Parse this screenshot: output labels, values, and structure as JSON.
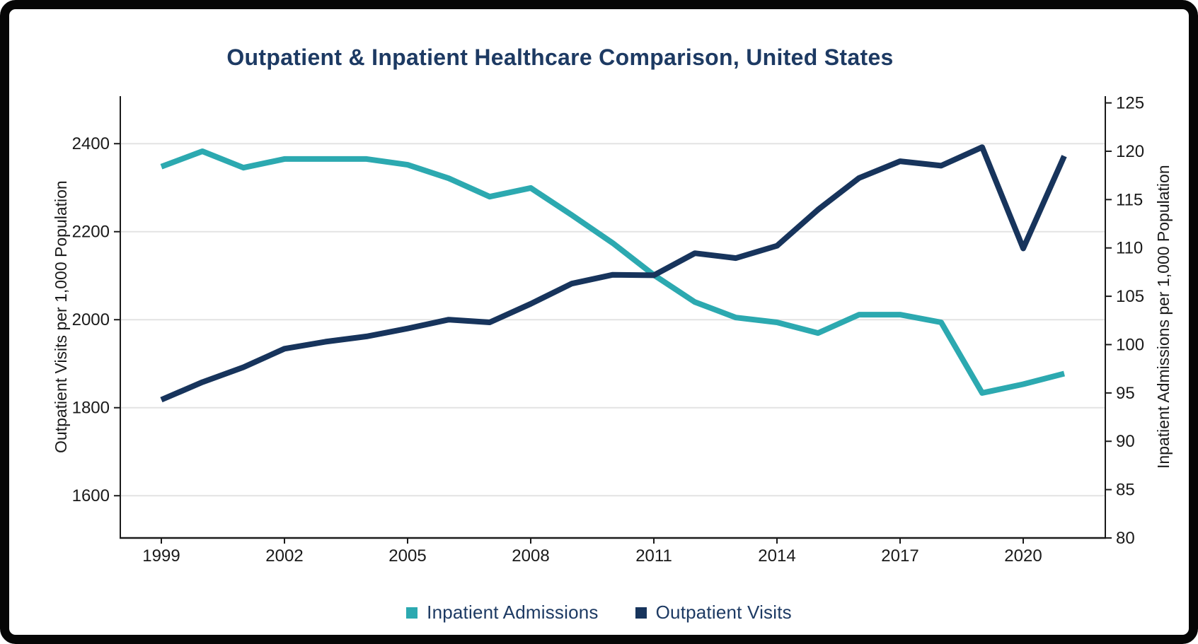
{
  "title": "Outpatient & Inpatient Healthcare Comparison, United States",
  "legend": {
    "items": [
      {
        "label": "Inpatient Admissions",
        "color": "#2ca9b0"
      },
      {
        "label": "Outpatient Visits",
        "color": "#17345c"
      }
    ]
  },
  "chart_data": {
    "type": "line",
    "title": "Outpatient & Inpatient Healthcare Comparison, United States",
    "x": [
      1999,
      2000,
      2001,
      2002,
      2003,
      2004,
      2005,
      2006,
      2007,
      2008,
      2009,
      2010,
      2011,
      2012,
      2013,
      2014,
      2015,
      2016,
      2017,
      2018,
      2019,
      2020,
      2021
    ],
    "series": [
      {
        "name": "Inpatient Admissions",
        "axis": "right",
        "color": "#2ca9b0",
        "values": [
          118.4,
          120.0,
          118.3,
          119.2,
          119.2,
          119.2,
          118.6,
          117.2,
          115.3,
          116.2,
          113.4,
          110.5,
          107.2,
          104.4,
          102.8,
          102.3,
          101.2,
          103.1,
          103.1,
          102.3,
          95.0,
          95.9,
          97.0
        ]
      },
      {
        "name": "Outpatient Visits",
        "axis": "left",
        "color": "#17345c",
        "values": [
          1818,
          1858,
          1892,
          1934,
          1950,
          1962,
          1980,
          2000,
          1994,
          2036,
          2082,
          2102,
          2101,
          2151,
          2140,
          2168,
          2250,
          2322,
          2360,
          2350,
          2392,
          2162,
          2372
        ]
      }
    ],
    "left_axis": {
      "label": "Outpatient Visits per 1,000 Population",
      "ticks": [
        2400,
        2200,
        2000,
        1800,
        1600
      ],
      "range": [
        1504,
        2508
      ]
    },
    "right_axis": {
      "label": "Inpatient Admissions per 1,000 Population",
      "ticks": [
        125,
        120,
        115,
        110,
        105,
        100,
        95,
        90,
        85,
        80
      ],
      "range": [
        80,
        125.7
      ]
    },
    "x_axis": {
      "ticks": [
        1999,
        2002,
        2005,
        2008,
        2011,
        2014,
        2017,
        2020
      ],
      "range": [
        1998,
        2022
      ]
    },
    "grid": "horizontal",
    "legend_position": "bottom-center",
    "colors": {
      "teal": "#2ca9b0",
      "navy": "#17345c",
      "grid": "#e3e3e3",
      "axis": "#1a1a1a",
      "text_navy": "#1d3a63"
    }
  }
}
